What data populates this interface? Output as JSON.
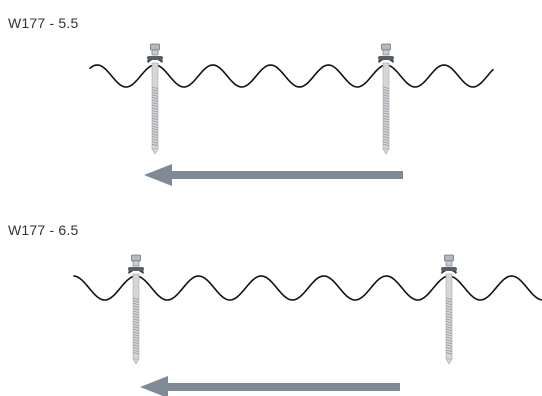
{
  "diagrams": [
    {
      "label": "W177 - 5.5"
    },
    {
      "label": "W177 - 6.5"
    }
  ],
  "colors": {
    "sheet_profile": "#111111",
    "arrow": "#7f8a96",
    "screw_shank": "#d4d6d8",
    "screw_thread": "#9a9ea3",
    "washer": "#3a3e44",
    "head": "#b5b9bd"
  },
  "icons": [
    "corrugated-sheet-profile",
    "fastener-screw",
    "direction-arrow-left"
  ]
}
